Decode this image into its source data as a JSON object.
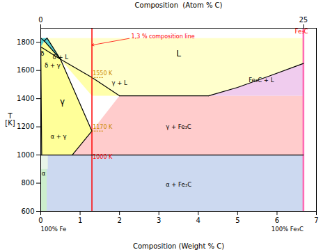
{
  "chart_data": {
    "type": "phase_diagram",
    "xlabel": "Composition (Weight % C)",
    "top_xlabel": "Composition  (Atom % C)",
    "ylabel": "T\n[K]",
    "xlim": [
      0,
      7
    ],
    "ylim": [
      600,
      1900
    ],
    "xticks": [
      0,
      1,
      2,
      3,
      4,
      5,
      6,
      7
    ],
    "yticks": [
      600,
      800,
      1000,
      1200,
      1400,
      1600,
      1800
    ],
    "top_xticks": [
      {
        "value": 0,
        "label": "0"
      },
      {
        "value": 6.67,
        "label": "25"
      }
    ],
    "regions": [
      {
        "x": [
          0.0,
          6.67,
          6.67,
          0.0
        ],
        "y": [
          600,
          600,
          1000,
          1000
        ],
        "color": "#ccd9f0"
      },
      {
        "x": [
          0.8,
          6.67,
          6.67,
          2.0,
          2.0,
          1.3,
          0.8
        ],
        "y": [
          1000,
          1000,
          1420,
          1420,
          1420,
          1170,
          1000
        ],
        "color": "#ffcccc"
      },
      {
        "x": [
          0.09,
          0.5,
          1.3,
          2.0,
          4.26,
          6.67,
          5.8,
          5.0,
          4.26,
          6.67,
          6.67,
          0.16
        ],
        "y": [
          1809,
          1680,
          1550,
          1420,
          1420,
          1650,
          1560,
          1480,
          1420,
          1650,
          1830,
          1830
        ],
        "color": "#ffffcc"
      },
      {
        "x": [
          0.0,
          0.09,
          0.5,
          1.3,
          0.8,
          0.025,
          0.0
        ],
        "y": [
          1768,
          1809,
          1680,
          1170,
          1000,
          1000,
          1768
        ],
        "color": "#ffff99"
      },
      {
        "x": [
          4.26,
          5.0,
          5.8,
          6.67,
          6.67,
          4.26
        ],
        "y": [
          1420,
          1480,
          1560,
          1650,
          1420,
          1420
        ],
        "color": "#f0ccee"
      },
      {
        "x": [
          0.5,
          1.3,
          2.0,
          2.0,
          1.3,
          0.5
        ],
        "y": [
          1680,
          1550,
          1420,
          1420,
          1420,
          1680
        ],
        "color": "#ffffaa"
      },
      {
        "x": [
          0.0,
          0.025,
          0.8,
          0.0
        ],
        "y": [
          1768,
          1000,
          1000,
          1000
        ],
        "color": "#cceecc"
      },
      {
        "x": [
          0.0,
          0.15,
          0.15,
          0.0
        ],
        "y": [
          600,
          600,
          1000,
          1000
        ],
        "color": "#cceecc"
      },
      {
        "x": [
          0.0,
          0.18,
          0.18,
          0.0
        ],
        "y": [
          900,
          900,
          1000,
          1000
        ],
        "color": "#e8f5e8"
      },
      {
        "x": [
          0.09,
          0.16,
          0.5,
          0.09
        ],
        "y": [
          1809,
          1830,
          1680,
          1809
        ],
        "color": "#55cccc"
      },
      {
        "x": [
          0.0,
          0.09,
          0.16,
          0.0
        ],
        "y": [
          1768,
          1809,
          1830,
          1830
        ],
        "color": "#55cccc"
      }
    ],
    "vlines": [
      {
        "x": 1.3,
        "color": "red"
      },
      {
        "x": 6.67,
        "color": "#ff69b4"
      }
    ],
    "lines": [
      {
        "x": [
          0.09,
          0.5,
          1.3,
          2.0
        ],
        "y": [
          1809,
          1680,
          1550,
          1420
        ],
        "color": "#000000"
      },
      {
        "x": [
          4.26,
          5.0,
          5.8,
          6.67
        ],
        "y": [
          1420,
          1480,
          1560,
          1650
        ],
        "color": "#000000"
      },
      {
        "x": [
          2.0,
          4.26
        ],
        "y": [
          1420,
          1420
        ],
        "color": "#000000"
      },
      {
        "x": [
          0.5,
          1.3,
          0.8
        ],
        "y": [
          1680,
          1170,
          1000
        ],
        "color": "#000000"
      },
      {
        "x": [
          0.0,
          0.025
        ],
        "y": [
          1768,
          1000
        ],
        "color": "#000000"
      },
      {
        "x": [
          0.0,
          0.0
        ],
        "y": [
          1000,
          1768
        ],
        "color": "#000000"
      },
      {
        "x": [
          0.0,
          0.09
        ],
        "y": [
          1830,
          1809
        ],
        "color": "#000000"
      },
      {
        "x": [
          0.09,
          0.16
        ],
        "y": [
          1809,
          1830
        ],
        "color": "#000000"
      },
      {
        "x": [
          0.16,
          0.5
        ],
        "y": [
          1830,
          1680
        ],
        "color": "#000000"
      },
      {
        "x": [
          0.0,
          0.5
        ],
        "y": [
          1768,
          1680
        ],
        "color": "#000000"
      },
      {
        "x": [
          0.0,
          6.67
        ],
        "y": [
          1000,
          1000
        ],
        "color": "#000000"
      },
      {
        "x": [
          1.3,
          1.6
        ],
        "y": [
          1550,
          1550
        ],
        "color": "#cc8800",
        "line_style": "dotted"
      },
      {
        "x": [
          1.3,
          1.6
        ],
        "y": [
          1170,
          1170
        ],
        "color": "#cc8800",
        "line_style": "dotted"
      }
    ],
    "labels": [
      {
        "text": "L",
        "x": 3.5,
        "y": 1720,
        "color": "#000000"
      },
      {
        "text": "δ + L",
        "x": 0.5,
        "y": 1680,
        "color": "#000000"
      },
      {
        "text": "δ",
        "x": 0.04,
        "y": 1720,
        "color": "#000000"
      },
      {
        "text": "δ + γ",
        "x": 0.3,
        "y": 1650,
        "color": "#000000"
      },
      {
        "text": "γ",
        "x": 0.55,
        "y": 1380,
        "color": "#000000"
      },
      {
        "text": "α + γ",
        "x": 0.45,
        "y": 1130,
        "color": "#000000"
      },
      {
        "text": "α",
        "x": 0.07,
        "y": 870,
        "color": "#000000"
      },
      {
        "text": "γ + L",
        "x": 2.0,
        "y": 1510,
        "color": "#000000"
      },
      {
        "text": "γ + Fe₃C",
        "x": 3.5,
        "y": 1200,
        "color": "#000000"
      },
      {
        "text": "α + Fe₃C",
        "x": 3.5,
        "y": 790,
        "color": "#000000"
      },
      {
        "text": "Fe₃C + L",
        "x": 5.6,
        "y": 1530,
        "color": "#000000"
      },
      {
        "text": "Fe₃C",
        "x": 6.62,
        "y": 1875,
        "color": "red"
      }
    ],
    "temperature_labels": [
      {
        "text": "1550 K",
        "x": 1.32,
        "y": 1565,
        "color": "#cc8800"
      },
      {
        "text": "1170 K",
        "x": 1.32,
        "y": 1185,
        "color": "#cc8800"
      },
      {
        "text": "1000 K",
        "x": 1.32,
        "y": 975,
        "color": "red"
      }
    ],
    "arrows": [
      {
        "text": "1,3 % composition line",
        "x": 2.3,
        "y": 1830,
        "x_to": 1.3,
        "y_to": 1780,
        "color": "red"
      }
    ],
    "end_labels": [
      {
        "text": "100% Fe",
        "x": 0.0,
        "y": 590
      },
      {
        "text": "100% Fe₃C",
        "x": 6.67,
        "y": 590
      }
    ]
  }
}
